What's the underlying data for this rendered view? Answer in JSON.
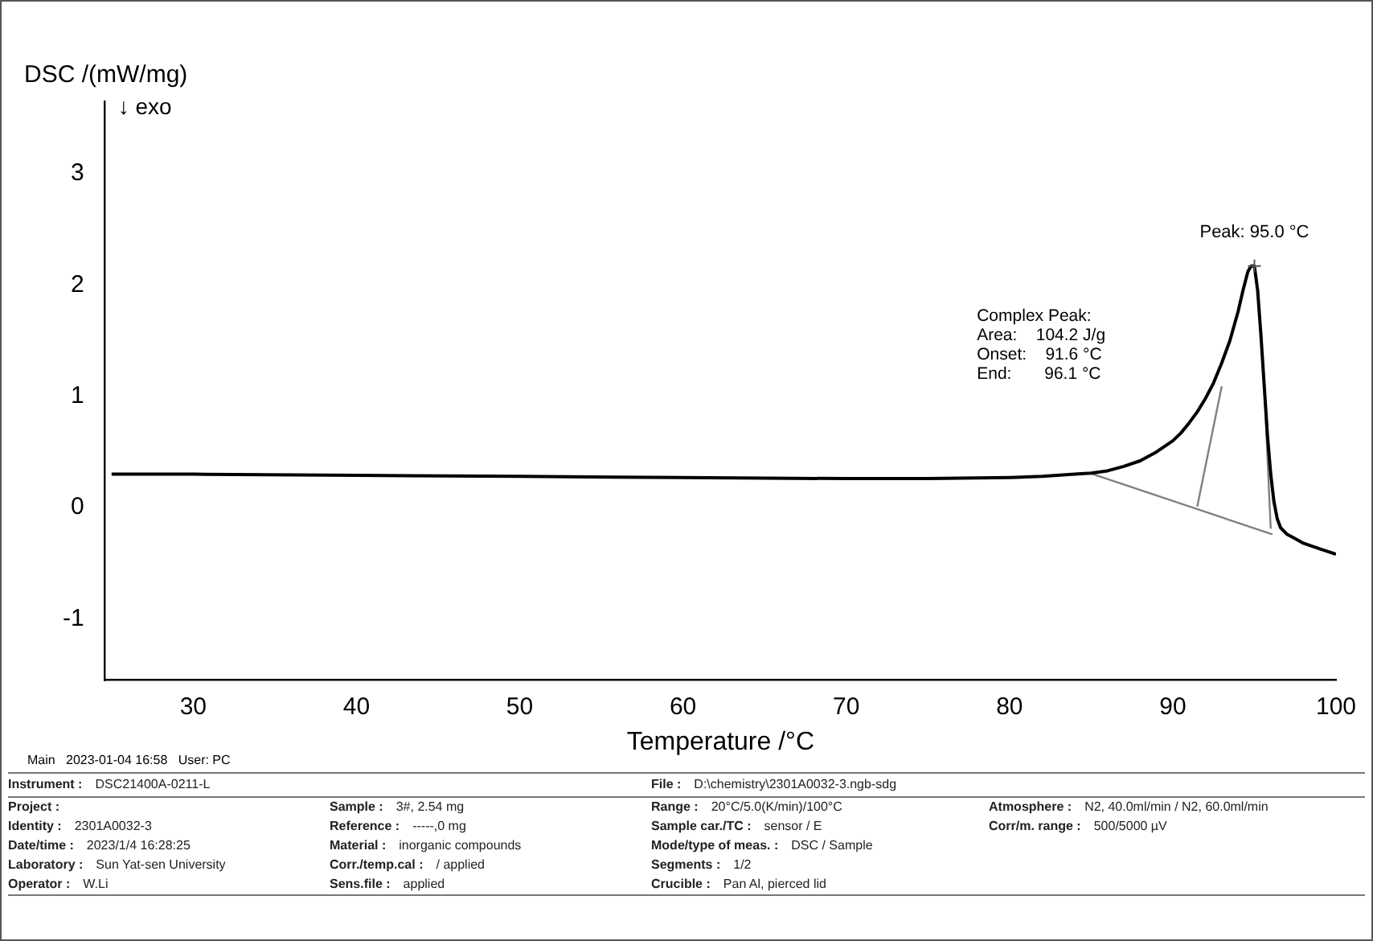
{
  "chart_data": {
    "type": "line",
    "xlabel": "Temperature /°C",
    "ylabel": "DSC /(mW/mg)",
    "xlim": [
      24.6,
      100
    ],
    "xticks": [
      30,
      40,
      50,
      60,
      70,
      80,
      90,
      100
    ],
    "ylim": [
      -1.55,
      3.65
    ],
    "yticks": [
      -1,
      0,
      1,
      2,
      3
    ],
    "grid": false,
    "legend": false,
    "marker": "none",
    "line_style": "solid",
    "series": [
      {
        "color": "#000000",
        "x": [
          25,
          30,
          40,
          50,
          60,
          70,
          75,
          80,
          82,
          84,
          85,
          86,
          87,
          88,
          89,
          90,
          90.5,
          91,
          91.5,
          92,
          92.5,
          93,
          93.5,
          94,
          94.3,
          94.6,
          94.8,
          95,
          95.2,
          95.4,
          95.6,
          95.8,
          96,
          96.2,
          96.4,
          96.6,
          97,
          97.5,
          98,
          99,
          100
        ],
        "values": [
          0.3,
          0.3,
          0.29,
          0.28,
          0.27,
          0.26,
          0.26,
          0.27,
          0.28,
          0.3,
          0.31,
          0.33,
          0.37,
          0.42,
          0.5,
          0.6,
          0.67,
          0.76,
          0.86,
          0.98,
          1.12,
          1.3,
          1.5,
          1.76,
          1.95,
          2.12,
          2.17,
          2.17,
          1.95,
          1.55,
          1.1,
          0.65,
          0.3,
          0.05,
          -0.1,
          -0.18,
          -0.24,
          -0.28,
          -0.32,
          -0.37,
          -0.42
        ]
      },
      {
        "color": "#808080",
        "x": [
          84.9,
          96.1
        ],
        "values": [
          0.31,
          -0.24
        ]
      },
      {
        "color": "#808080",
        "x": [
          91.5,
          93.0
        ],
        "values": [
          0.01,
          1.09
        ]
      },
      {
        "color": "#808080",
        "x": [
          96.0,
          95.6
        ],
        "values": [
          -0.19,
          1.1
        ]
      }
    ],
    "annotations": [
      "↓ exo",
      {
        "text": "Peak: 95.0 °C",
        "x": 95.0,
        "y": 2.17
      },
      "Complex Peak:\nArea:    104.2 J/g\nOnset:    91.6 °C\nEnd:       96.1 °C",
      "Main   2023-01-04 16:58   User: PC",
      "Instrument : DSC21400A-0211-L",
      "File : D:\\chemistry\\2301A0032-3.ngb-sdg",
      "Project :",
      "Identity : 2301A0032-3",
      "Date/time : 2023/1/4 16:28:25",
      "Laboratory : Sun Yat-sen University",
      "Operator : W.Li",
      "Sample : 3#, 2.54 mg",
      "Reference : -----,0 mg",
      "Material : inorganic compounds",
      "Corr./temp.cal : / applied",
      "Sens.file : applied",
      "Range : 20°C/5.0(K/min)/100°C",
      "Sample car./TC : sensor / E",
      "Mode/type of meas. : DSC / Sample",
      "Segments : 1/2",
      "Crucible : Pan Al, pierced lid",
      "Atmosphere : N2, 40.0ml/min / N2, 60.0ml/min",
      "Corr/m. range : 500/5000 µV"
    ]
  }
}
